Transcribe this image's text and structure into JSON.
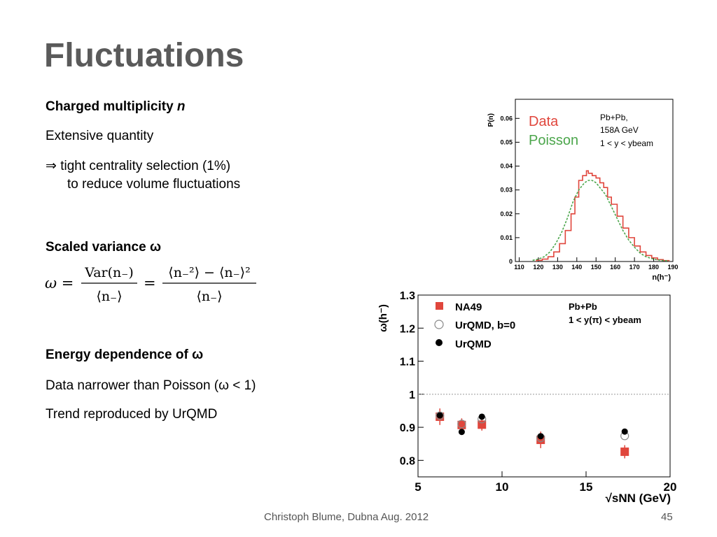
{
  "slide": {
    "title": "Fluctuations",
    "section1": {
      "heading": "Charged multiplicity",
      "heading_var": "n",
      "line1": "Extensive quantity",
      "line2_prefix": "⇒",
      "line2": "tight centrality selection (1%)",
      "line3": "to reduce volume fluctuations"
    },
    "section2": {
      "heading": "Scaled variance",
      "symbol": "ω",
      "equation": {
        "lhs": "ω =",
        "frac1_num": "Var(n₋)",
        "frac1_den": "⟨n₋⟩",
        "eq2": "=",
        "frac2_num": "⟨n₋²⟩ − ⟨n₋⟩²",
        "frac2_den": "⟨n₋⟩"
      }
    },
    "section3": {
      "heading": "Energy dependence of",
      "symbol": "ω",
      "line1": "Data narrower than Poisson (ω < 1)",
      "line2": "Trend reproduced by UrQMD"
    },
    "footer": {
      "author": "Christoph Blume, Dubna Aug. 2012",
      "page": "45"
    }
  },
  "chart_data": [
    {
      "type": "line",
      "ylabel": "P(n)",
      "xlabel": "n(h⁻)",
      "xlim": [
        108,
        190
      ],
      "ylim": [
        0,
        0.068
      ],
      "x_ticks": [
        110,
        120,
        130,
        140,
        150,
        160,
        170,
        180,
        190
      ],
      "y_ticks": [
        0,
        0.01,
        0.02,
        0.03,
        0.04,
        0.05,
        0.06
      ],
      "y_tick_labels": [
        "0",
        "0.01",
        "0.02",
        "0.03",
        "0.04",
        "0.05",
        "0.06"
      ],
      "legend": [
        "Data",
        "Poisson"
      ],
      "legend_colors": [
        "#e0463c",
        "#4ca64c"
      ],
      "annotation": [
        "Pb+Pb,",
        "158A GeV",
        "1 < y < ybeam"
      ],
      "series": [
        {
          "name": "Data",
          "x": [
            119,
            122,
            125,
            128,
            131,
            134,
            137,
            139,
            141,
            143,
            145,
            146,
            147,
            148,
            150,
            152,
            154,
            156,
            158,
            161,
            164,
            167,
            170,
            173,
            176,
            179,
            182,
            185
          ],
          "values": [
            0.0005,
            0.001,
            0.002,
            0.004,
            0.0075,
            0.013,
            0.02,
            0.027,
            0.034,
            0.036,
            0.038,
            0.037,
            0.037,
            0.036,
            0.035,
            0.033,
            0.031,
            0.027,
            0.024,
            0.019,
            0.014,
            0.01,
            0.0065,
            0.004,
            0.0025,
            0.0015,
            0.0008,
            0.0004
          ]
        },
        {
          "name": "Poisson",
          "x": [
            117,
            120,
            123,
            126,
            129,
            132,
            135,
            138,
            141,
            144,
            146,
            148,
            150,
            152,
            155,
            158,
            161,
            164,
            167,
            170,
            173,
            176,
            179,
            182,
            185,
            188
          ],
          "values": [
            0.0005,
            0.001,
            0.002,
            0.004,
            0.0075,
            0.012,
            0.018,
            0.025,
            0.03,
            0.033,
            0.034,
            0.034,
            0.033,
            0.031,
            0.028,
            0.023,
            0.018,
            0.013,
            0.009,
            0.006,
            0.0035,
            0.002,
            0.0012,
            0.0007,
            0.0004,
            0.0002
          ]
        }
      ]
    },
    {
      "type": "scatter",
      "ylabel": "ω(h⁻)",
      "xlabel": "√sNN (GeV)",
      "xlim": [
        5,
        20
      ],
      "ylim": [
        0.75,
        1.3
      ],
      "x_ticks": [
        5,
        10,
        15,
        20
      ],
      "y_ticks": [
        0.8,
        0.9,
        1,
        1.1,
        1.2,
        1.3
      ],
      "y_tick_labels": [
        "0.8",
        "0.9",
        "1",
        "1.1",
        "1.2",
        "1.3"
      ],
      "reference_line": 1,
      "annotation": [
        "Pb+Pb",
        "1 < y(π) < ybeam"
      ],
      "series": [
        {
          "name": "NA49",
          "x": [
            6.3,
            7.6,
            8.8,
            12.3,
            17.3
          ],
          "values": [
            0.932,
            0.907,
            0.908,
            0.862,
            0.826
          ],
          "errors": [
            0.025,
            0.02,
            0.018,
            0.025,
            0.02
          ],
          "color": "#e0463c"
        },
        {
          "name": "UrQMD, b=0",
          "x": [
            6.3,
            7.6,
            8.8,
            12.3,
            17.3
          ],
          "values": [
            0.935,
            0.91,
            0.925,
            0.868,
            0.874
          ],
          "color": "#888888"
        },
        {
          "name": "UrQMD",
          "x": [
            6.3,
            7.6,
            8.8,
            12.3,
            17.3
          ],
          "values": [
            0.936,
            0.886,
            0.932,
            0.873,
            0.887
          ],
          "color": "#000000"
        }
      ]
    }
  ]
}
